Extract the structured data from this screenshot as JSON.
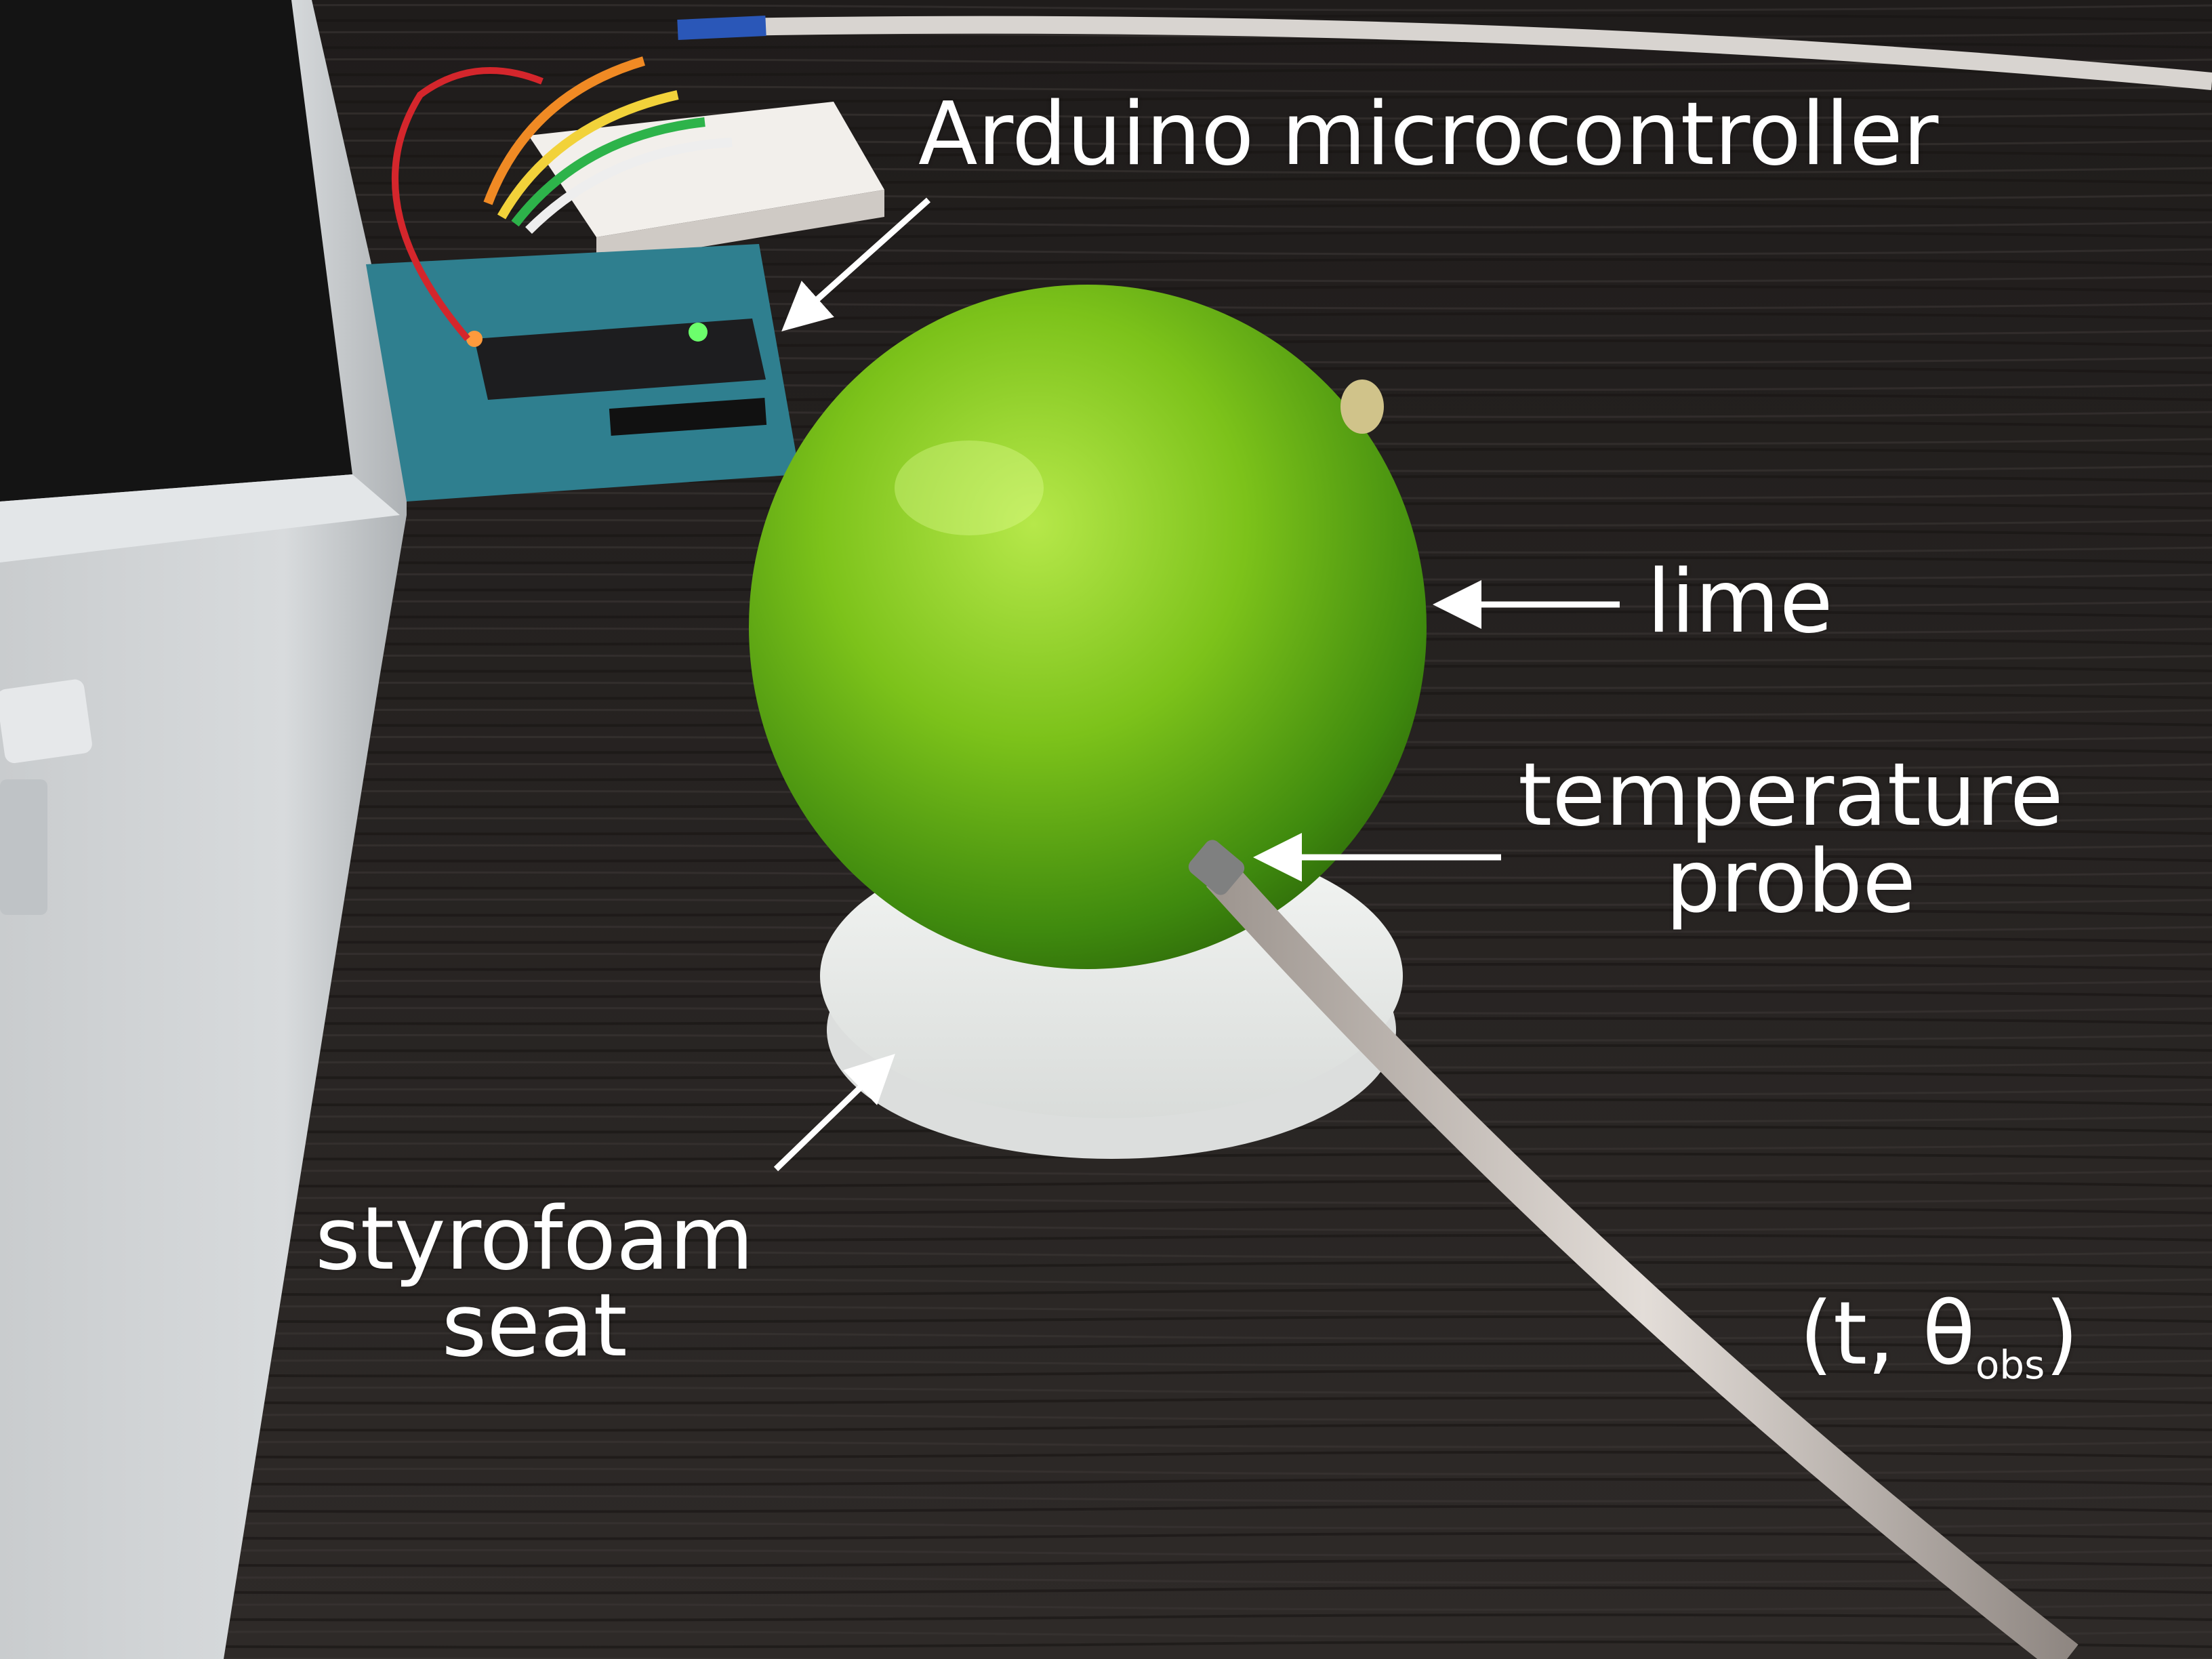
{
  "labels": {
    "arduino": "Arduino microcontroller",
    "lime": "lime",
    "probe_line1": "temperature",
    "probe_line2": "probe",
    "seat_line1": "styrofoam",
    "seat_line2": "seat",
    "measurement_open": "(t, θ",
    "measurement_sub": "obs",
    "measurement_close": ")"
  },
  "colors": {
    "table": "#2a2624",
    "lime": "#7cc21a",
    "lime_shadow": "#2f6b0a",
    "styrofoam": "#eef0ee",
    "laptop": "#cfd2d4",
    "board": "#2f7f8f",
    "annotation": "#ffffff"
  }
}
